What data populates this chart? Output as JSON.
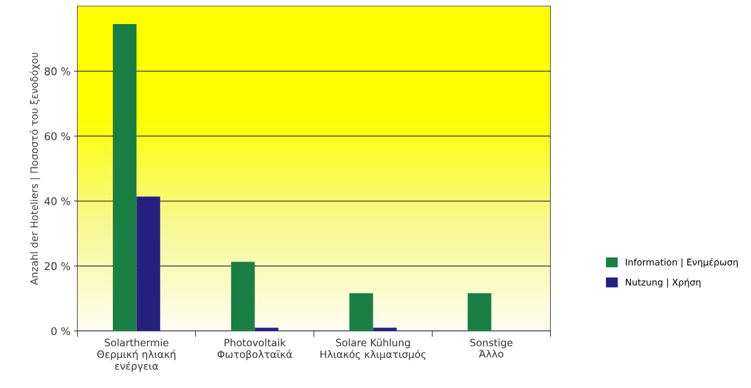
{
  "chart_data": {
    "type": "bar",
    "ylabel": "Anzahl der Hoteliers | Ποσοστό του ξενοδόχου",
    "categories": [
      "Solarthermie\nΘερμική ηλιακή\nενέργεια",
      "Photovoltaik\nΦωτοβολταϊκά",
      "Solare Kühlung\nΗλιακός κλιματισμός",
      "Sonstige\nΆλλο"
    ],
    "series": [
      {
        "name": "Information | Ενημέρωση",
        "color": "#1a7f45",
        "values": [
          94.5,
          21.3,
          11.6,
          11.6
        ]
      },
      {
        "name": "Nutzung | Χρήση",
        "color": "#252080",
        "values": [
          41.4,
          1,
          1,
          0
        ]
      }
    ],
    "ylim": [
      0,
      100
    ],
    "yticks": [
      {
        "value": 0,
        "label": "0 %"
      },
      {
        "value": 20,
        "label": "20 %"
      },
      {
        "value": 40,
        "label": "40 %"
      },
      {
        "value": 60,
        "label": "60 %"
      },
      {
        "value": 80,
        "label": "80 %"
      }
    ],
    "grid": "y",
    "legend": "right"
  }
}
